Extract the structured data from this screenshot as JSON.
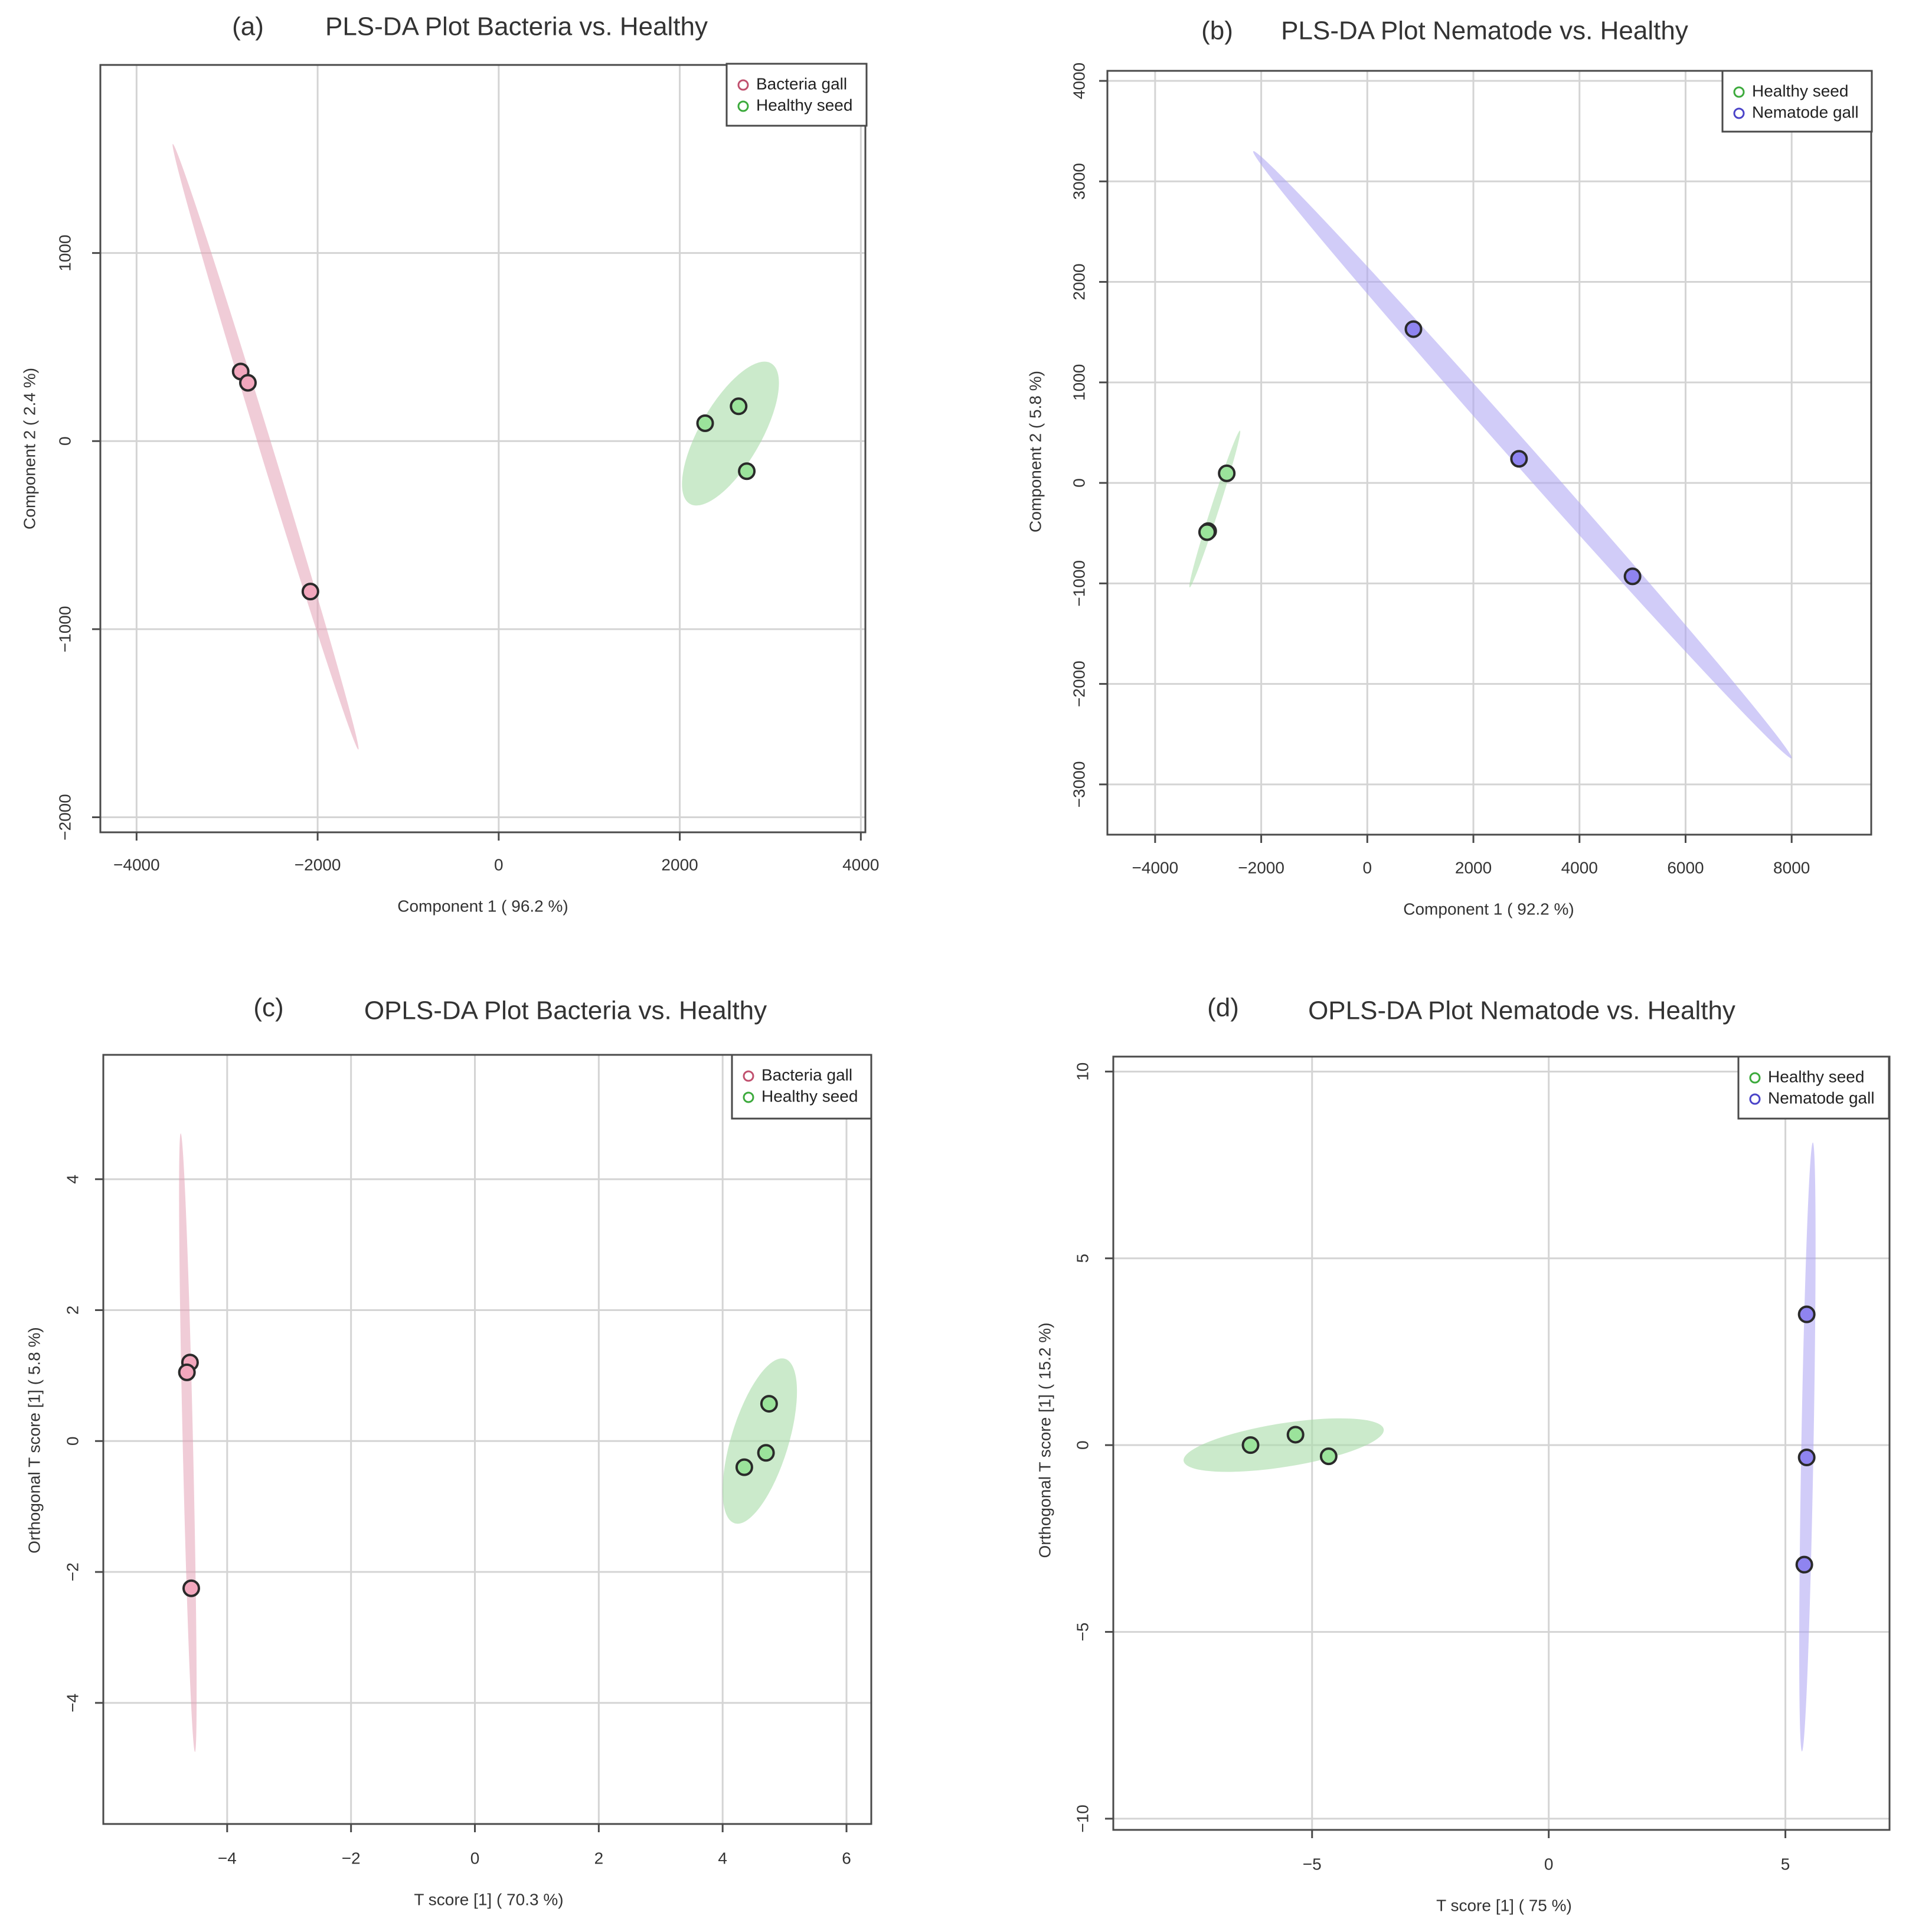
{
  "colors": {
    "bacteria_fill": "#f2a7bd",
    "bacteria_ellipse": "#e4a3b7",
    "healthy_fill": "#9be39b",
    "healthy_ellipse": "#a8dca8",
    "nematode_fill": "#8f84f0",
    "nematode_ellipse": "#aba3f2",
    "bacteria_legend": "#c0506e",
    "healthy_legend": "#3caa3c",
    "nematode_legend": "#4a43c8",
    "grid": "#d4d4d4",
    "frame": "#4a4a4a",
    "point_edge": "#2a2a2a",
    "text": "#333333"
  },
  "chart_data": [
    {
      "panel_label": "(a)",
      "type": "scatter",
      "title": "PLS-DA Plot  Bacteria  vs. Healthy",
      "xlabel": "Component 1 ( 96.2 %)",
      "ylabel": "Component 2 ( 2.4 %)",
      "xlim": [
        -4400,
        4050
      ],
      "ylim": [
        -2080,
        2000
      ],
      "xticks": [
        -4000,
        -2000,
        0,
        2000,
        4000
      ],
      "yticks": [
        -2000,
        -1000,
        0,
        1000
      ],
      "grid": true,
      "legend_position": "top-right",
      "series": [
        {
          "name": "Bacteria gall",
          "color_key": "bacteria",
          "points": [
            [
              -2850,
              370
            ],
            [
              -2770,
              310
            ],
            [
              -2080,
              -800
            ]
          ],
          "ellipse_outline": [
            [
              -3600,
              1580
            ],
            [
              -1550,
              -1640
            ]
          ],
          "ellipse_width": 90
        },
        {
          "name": "Healthy seed",
          "color_key": "healthy",
          "points": [
            [
              2280,
              95
            ],
            [
              2650,
              185
            ],
            [
              2740,
              -160
            ]
          ],
          "ellipse_center": [
            2560,
            40
          ],
          "ellipse_semi_major": 480,
          "ellipse_semi_minor": 250,
          "ellipse_angle_deg": -60
        }
      ]
    },
    {
      "panel_label": "(b)",
      "type": "scatter",
      "title": "PLS-DA Plot  Nematode  vs. Healthy",
      "xlabel": "Component 1 ( 92.2 %)",
      "ylabel": "Component 2 ( 5.8 %)",
      "xlim": [
        -4900,
        9500
      ],
      "ylim": [
        -3500,
        4100
      ],
      "xticks": [
        -4000,
        -2000,
        0,
        2000,
        4000,
        6000,
        8000
      ],
      "yticks": [
        -3000,
        -2000,
        -1000,
        0,
        1000,
        2000,
        3000,
        4000
      ],
      "grid": true,
      "legend_position": "top-right",
      "series": [
        {
          "name": "Healthy seed",
          "color_key": "healthy",
          "points": [
            [
              -2650,
              95
            ],
            [
              -3000,
              -480
            ],
            [
              -3020,
              -490
            ]
          ],
          "ellipse_outline": [
            [
              -3350,
              -1040
            ],
            [
              -2400,
              520
            ]
          ],
          "ellipse_width": 60
        },
        {
          "name": "Nematode gall",
          "color_key": "nematode",
          "points": [
            [
              870,
              1530
            ],
            [
              2860,
              240
            ],
            [
              5000,
              -930
            ]
          ],
          "ellipse_outline": [
            [
              -2150,
              3300
            ],
            [
              8000,
              -2740
            ]
          ],
          "ellipse_width": 330
        }
      ]
    },
    {
      "panel_label": "(c)",
      "type": "scatter",
      "title": "OPLS-DA Plot  Bacteria  vs. Healthy",
      "xlabel": "T score [1] ( 70.3 %)",
      "ylabel": "Orthogonal T score [1] ( 5.8 %)",
      "xlim": [
        -6.0,
        6.4
      ],
      "ylim": [
        -5.85,
        5.9
      ],
      "xticks": [
        -4,
        -2,
        0,
        2,
        4,
        6
      ],
      "yticks": [
        -4,
        -2,
        0,
        2,
        4
      ],
      "grid": true,
      "legend_position": "top-right",
      "series": [
        {
          "name": "Bacteria gall",
          "color_key": "bacteria",
          "points": [
            [
              -4.6,
              1.2
            ],
            [
              -4.65,
              1.05
            ],
            [
              -4.58,
              -2.25
            ]
          ],
          "ellipse_outline": [
            [
              -4.75,
              4.7
            ],
            [
              -4.52,
              -4.75
            ]
          ],
          "ellipse_width": 0.09
        },
        {
          "name": "Healthy seed",
          "color_key": "healthy",
          "points": [
            [
              4.35,
              -0.4
            ],
            [
              4.7,
              -0.18
            ],
            [
              4.75,
              0.57
            ]
          ],
          "ellipse_center": [
            4.6,
            0.0
          ],
          "ellipse_semi_major": 1.32,
          "ellipse_semi_minor": 0.46,
          "ellipse_angle_deg": -73
        }
      ]
    },
    {
      "panel_label": "(d)",
      "type": "scatter",
      "title": "OPLS-DA Plot  Nematode  vs. Healthy",
      "xlabel": "T score [1] ( 75 %)",
      "ylabel": "Orthogonal T score [1] ( 15.2 %)",
      "xlim": [
        -9.2,
        7.2
      ],
      "ylim": [
        -10.3,
        10.4
      ],
      "xticks": [
        -5,
        0,
        5
      ],
      "yticks": [
        -10,
        -5,
        0,
        5,
        10
      ],
      "grid": true,
      "legend_position": "top-right",
      "series": [
        {
          "name": "Healthy seed",
          "color_key": "healthy",
          "points": [
            [
              -6.3,
              0.0
            ],
            [
              -5.35,
              0.28
            ],
            [
              -4.65,
              -0.3
            ]
          ],
          "ellipse_center": [
            -5.6,
            0.0
          ],
          "ellipse_semi_major": 2.15,
          "ellipse_semi_minor": 0.58,
          "ellipse_angle_deg": -9
        },
        {
          "name": "Nematode gall",
          "color_key": "nematode",
          "points": [
            [
              5.45,
              3.5
            ],
            [
              5.45,
              -0.33
            ],
            [
              5.4,
              -3.2
            ]
          ],
          "ellipse_outline": [
            [
              5.58,
              8.1
            ],
            [
              5.35,
              -8.2
            ]
          ],
          "ellipse_width": 0.2
        }
      ]
    }
  ]
}
